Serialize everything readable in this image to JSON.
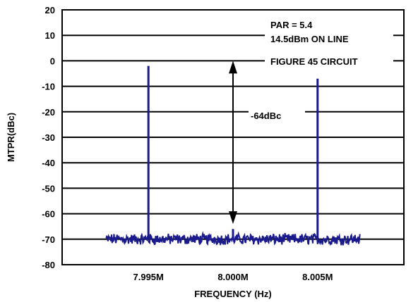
{
  "chart_data": {
    "type": "line",
    "title": "",
    "xlabel": "FREQUENCY (Hz)",
    "ylabel": "MTPR(dBc)",
    "ylim": [
      -80,
      20
    ],
    "yticks": [
      20,
      10,
      0,
      -10,
      -20,
      -30,
      -40,
      -50,
      -60,
      -70,
      -80
    ],
    "xlim": [
      7.9899,
      8.0101
    ],
    "xticks": [
      {
        "value": 7.995,
        "label": "7.995M"
      },
      {
        "value": 8.0,
        "label": "8.000M"
      },
      {
        "value": 8.005,
        "label": "8.005M"
      }
    ],
    "grid": true,
    "series": [
      {
        "color": "#1a1a8c",
        "noise_floor_dbc": -70,
        "noise_range_mhz": [
          7.9925,
          8.0075
        ],
        "spikes": [
          {
            "x": 7.995,
            "y": -2
          },
          {
            "x": 8.0,
            "y": -66
          },
          {
            "x": 8.005,
            "y": -7
          }
        ]
      }
    ],
    "annotations": {
      "par_text": "PAR = 5.4",
      "level_text": "14.5dBm ON LINE",
      "circuit_text": "FIGURE 45 CIRCUIT",
      "mtpr_text": "-64dBc",
      "arrow_from_dbc": 0,
      "arrow_to_dbc": -64
    }
  }
}
